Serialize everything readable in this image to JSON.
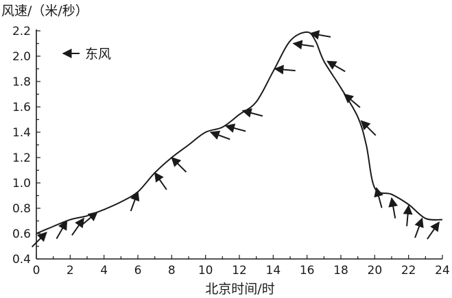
{
  "chart_data": {
    "type": "line",
    "ylabel": "风速/（米/秒）",
    "xlabel": "北京时间/时",
    "xlim": [
      0,
      24
    ],
    "ylim": [
      0.4,
      2.2
    ],
    "xticks": [
      "0",
      "2",
      "4",
      "6",
      "8",
      "10",
      "12",
      "14",
      "16",
      "18",
      "20",
      "22",
      "24"
    ],
    "yticks": [
      "0.4",
      "0.6",
      "0.8",
      "1.0",
      "1.2",
      "1.4",
      "1.6",
      "1.8",
      "2.0",
      "2.2"
    ],
    "grid": false,
    "legend": {
      "label": "东风",
      "placement": "top-left",
      "direction_deg": 180
    },
    "series": [
      {
        "x": [
          0,
          0.7,
          2,
          3,
          4,
          5,
          6,
          7,
          8,
          9,
          10,
          11,
          12,
          13,
          14,
          15,
          16,
          16.5,
          17,
          18,
          19,
          19.5,
          20,
          21,
          22,
          23,
          24
        ],
        "y": [
          0.6,
          0.64,
          0.71,
          0.74,
          0.79,
          0.85,
          0.93,
          1.08,
          1.2,
          1.3,
          1.4,
          1.44,
          1.54,
          1.64,
          1.88,
          2.12,
          2.19,
          2.12,
          1.96,
          1.75,
          1.52,
          1.3,
          0.96,
          0.91,
          0.83,
          0.72,
          0.71
        ]
      }
    ],
    "wind_arrows": [
      {
        "hour": 0.6,
        "speed": 0.61,
        "direction_deg": 45
      },
      {
        "hour": 1.8,
        "speed": 0.7,
        "direction_deg": 60
      },
      {
        "hour": 2.8,
        "speed": 0.72,
        "direction_deg": 55
      },
      {
        "hour": 3.6,
        "speed": 0.77,
        "direction_deg": 40
      },
      {
        "hour": 6.0,
        "speed": 0.93,
        "direction_deg": 70
      },
      {
        "hour": 7.0,
        "speed": 1.08,
        "direction_deg": 125
      },
      {
        "hour": 8.0,
        "speed": 1.2,
        "direction_deg": 135
      },
      {
        "hour": 10.3,
        "speed": 1.4,
        "direction_deg": 160
      },
      {
        "hour": 11.2,
        "speed": 1.45,
        "direction_deg": 165
      },
      {
        "hour": 12.2,
        "speed": 1.57,
        "direction_deg": 165
      },
      {
        "hour": 14.1,
        "speed": 1.9,
        "direction_deg": 175
      },
      {
        "hour": 15.2,
        "speed": 2.1,
        "direction_deg": 172
      },
      {
        "hour": 16.2,
        "speed": 2.18,
        "direction_deg": 170
      },
      {
        "hour": 17.2,
        "speed": 1.96,
        "direction_deg": 150
      },
      {
        "hour": 18.2,
        "speed": 1.7,
        "direction_deg": 140
      },
      {
        "hour": 19.2,
        "speed": 1.49,
        "direction_deg": 135
      },
      {
        "hour": 20.1,
        "speed": 0.96,
        "direction_deg": 105
      },
      {
        "hour": 21.0,
        "speed": 0.88,
        "direction_deg": 100
      },
      {
        "hour": 22.0,
        "speed": 0.82,
        "direction_deg": 85
      },
      {
        "hour": 22.8,
        "speed": 0.72,
        "direction_deg": 70
      },
      {
        "hour": 23.8,
        "speed": 0.69,
        "direction_deg": 55
      }
    ]
  }
}
